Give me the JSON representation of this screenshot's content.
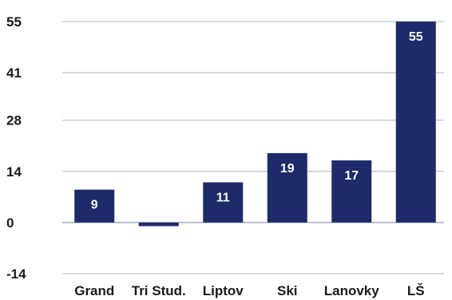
{
  "chart_data": {
    "type": "bar",
    "title": "",
    "xlabel": "",
    "ylabel": "",
    "categories": [
      "Grand",
      "Tri Stud.",
      "Liptov",
      "Ski",
      "Lanovky",
      "LŠ"
    ],
    "values": [
      9,
      -1,
      11,
      19,
      17,
      55
    ],
    "data_labels": [
      "9",
      "",
      "11",
      "19",
      "17",
      "55"
    ],
    "yticks": [
      -14,
      0,
      14,
      28,
      41,
      55
    ],
    "ylim": [
      -14,
      55
    ],
    "grid": true,
    "legend": "none",
    "colors": {
      "bar": "#1f2a6b",
      "grid": "#c8cdd8",
      "zero_line": "#b9bfcc"
    }
  }
}
